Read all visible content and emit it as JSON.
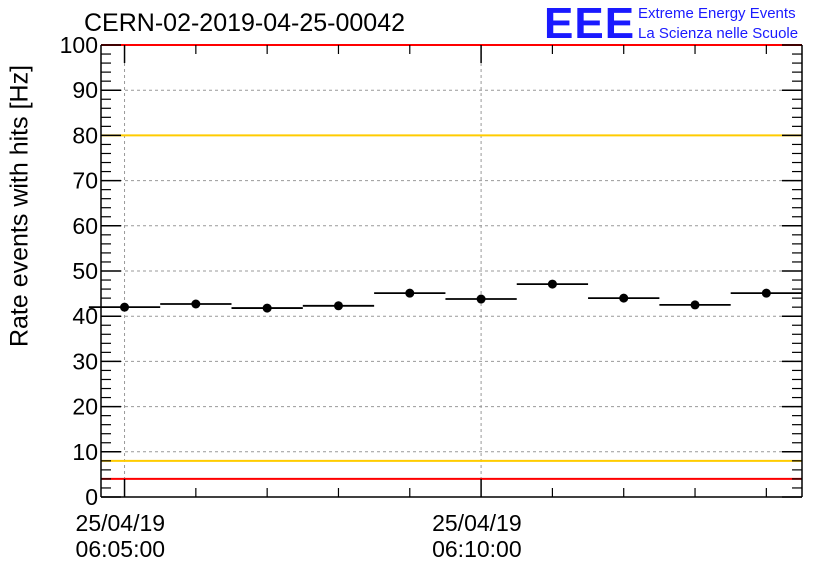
{
  "header": {
    "run_id": "CERN-02-2019-04-25-00042",
    "logo_text": "EEE",
    "logo_line1": "Extreme Energy Events",
    "logo_line2": "La Scienza nelle Scuole"
  },
  "chart_data": {
    "type": "scatter",
    "title": "CERN-02-2019-04-25-00042",
    "ylabel": "Rate events with hits [Hz]",
    "xlabel": "",
    "ylim": [
      0,
      100
    ],
    "yticks": [
      0,
      10,
      20,
      30,
      40,
      50,
      60,
      70,
      80,
      90,
      100
    ],
    "x_unit": "minutes after 25/04/19 06:00:00",
    "xlim": [
      4.67,
      14.5
    ],
    "xticks": [
      {
        "value": 5,
        "line1": "25/04/19",
        "line2": "06:05:00"
      },
      {
        "value": 10,
        "line1": "25/04/19",
        "line2": "06:10:00"
      }
    ],
    "x_minor_ticks": [
      6,
      7,
      8,
      9,
      11,
      12,
      13,
      14
    ],
    "grid": true,
    "bin_width": 1,
    "series": [
      {
        "x": [
          5,
          6,
          7,
          8,
          9,
          10,
          11,
          12,
          13,
          14
        ],
        "y": [
          42.0,
          42.7,
          41.8,
          42.3,
          45.1,
          43.8,
          47.1,
          44.0,
          42.5,
          45.1
        ]
      }
    ],
    "reference_lines": [
      {
        "y": 100,
        "color": "#ff0000"
      },
      {
        "y": 80,
        "color": "#ffcc00"
      },
      {
        "y": 8,
        "color": "#ffcc00"
      },
      {
        "y": 4,
        "color": "#ff0000"
      }
    ]
  }
}
